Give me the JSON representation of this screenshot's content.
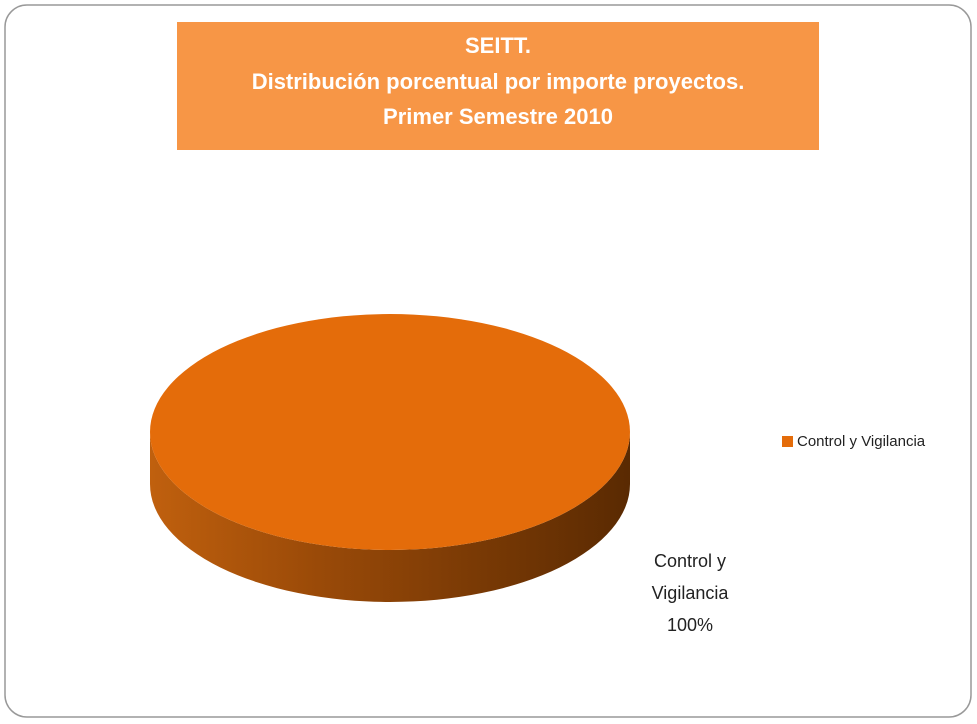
{
  "chart_data": {
    "type": "pie",
    "title": [
      "SEITT.",
      "Distribución porcentual por importe proyectos.",
      "Primer Semestre 2010"
    ],
    "categories": [
      "Control y Vigilancia"
    ],
    "values": [
      100
    ],
    "value_labels": [
      "100%"
    ],
    "colors": [
      "#e46c0a"
    ],
    "three_d": true,
    "legend": "right"
  }
}
